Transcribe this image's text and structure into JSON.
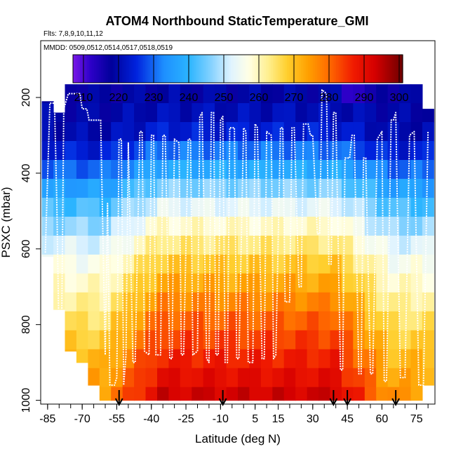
{
  "chart_data": {
    "type": "heatmap",
    "title": "ATOM4 Northbound StaticTemperature_GMI",
    "subtitle_flights": "Flts: 7,8,9,10,11,12",
    "subtitle_dates": "MMDD: 0509,0512,0514,0517,0518,0519",
    "xlabel": "Latitude (deg N)",
    "ylabel": "PSXC (mbar)",
    "xlim": [
      -88,
      83
    ],
    "ylim": [
      1010,
      50
    ],
    "x_ticks": [
      -85,
      -70,
      -55,
      -40,
      -25,
      -10,
      5,
      15,
      30,
      45,
      60,
      75
    ],
    "y_ticks": [
      200,
      400,
      600,
      800,
      1000
    ],
    "colorbar": {
      "min": 207,
      "max": 301,
      "ticks": [
        210,
        220,
        230,
        240,
        250,
        260,
        270,
        280,
        290,
        300
      ],
      "stops": [
        {
          "v": 207,
          "c": "#7a18e8"
        },
        {
          "v": 212,
          "c": "#2d00c8"
        },
        {
          "v": 218,
          "c": "#00009a"
        },
        {
          "v": 225,
          "c": "#0022dd"
        },
        {
          "v": 233,
          "c": "#1e90ff"
        },
        {
          "v": 240,
          "c": "#2ab4ff"
        },
        {
          "v": 246,
          "c": "#7fd0ff"
        },
        {
          "v": 252,
          "c": "#dff3ff"
        },
        {
          "v": 257,
          "c": "#ffffe6"
        },
        {
          "v": 263,
          "c": "#ffee8a"
        },
        {
          "v": 268,
          "c": "#ffcf2e"
        },
        {
          "v": 274,
          "c": "#ffa000"
        },
        {
          "v": 280,
          "c": "#ff6a00"
        },
        {
          "v": 287,
          "c": "#f01a00"
        },
        {
          "v": 293,
          "c": "#d60000"
        },
        {
          "v": 301,
          "c": "#6e0000"
        }
      ]
    },
    "pressure_levels": [
      190,
      240,
      290,
      340,
      390,
      440,
      490,
      540,
      590,
      640,
      690,
      740,
      790,
      840,
      890,
      940,
      990
    ],
    "lat_bins": [
      -85,
      -80,
      -75,
      -70,
      -65,
      -60,
      -55,
      -50,
      -45,
      -40,
      -35,
      -30,
      -25,
      -20,
      -15,
      -10,
      -5,
      0,
      5,
      10,
      15,
      20,
      25,
      30,
      35,
      40,
      45,
      50,
      55,
      60,
      65,
      70,
      75,
      80
    ],
    "temperature_profile": {
      "pressure": [
        190,
        240,
        290,
        340,
        390,
        440,
        490,
        540,
        590,
        640,
        690,
        740,
        790,
        840,
        890,
        940,
        990
      ],
      "tropics": [
        219,
        221,
        224,
        231,
        238,
        246,
        253,
        259,
        264,
        269,
        273,
        277,
        281,
        284,
        287,
        290,
        293
      ],
      "high_lat": [
        218,
        219,
        220,
        224,
        230,
        236,
        242,
        247,
        252,
        256,
        259,
        262,
        265,
        268,
        271,
        273,
        275
      ]
    },
    "flight_track": {
      "lat": [
        -86,
        -84,
        -82,
        -81,
        -80,
        -79,
        -78,
        -76,
        -75,
        -74,
        -71,
        -70,
        -68,
        -67,
        -62,
        -60,
        -59,
        -58,
        -56,
        -55,
        -54,
        -53,
        -52,
        -51,
        -50,
        -48,
        -47,
        -45,
        -44,
        -43,
        -41,
        -40,
        -39,
        -38,
        -36,
        -35,
        -34,
        -32,
        -31,
        -30,
        -28,
        -27,
        -26,
        -24,
        -23,
        -22,
        -20,
        -19,
        -18,
        -16,
        -15,
        -14,
        -13,
        -12,
        -11,
        -10,
        -9,
        -8,
        -7,
        -6,
        -4,
        -3,
        -2,
        0,
        1,
        2,
        4,
        5,
        6,
        8,
        9,
        10,
        12,
        13,
        14,
        16,
        17,
        18,
        20,
        21,
        22,
        24,
        25,
        26,
        28,
        29,
        30,
        32,
        33,
        34,
        36,
        37,
        38,
        39,
        40,
        42,
        43,
        44,
        46,
        47,
        48,
        50,
        51,
        52,
        53,
        55,
        56,
        58,
        60,
        61,
        62,
        64,
        65,
        66,
        68,
        70,
        72,
        74,
        76,
        78,
        80
      ],
      "p": [
        610,
        215,
        215,
        480,
        860,
        860,
        230,
        190,
        190,
        190,
        190,
        230,
        230,
        260,
        260,
        880,
        480,
        960,
        960,
        940,
        310,
        310,
        960,
        880,
        320,
        900,
        900,
        290,
        290,
        870,
        880,
        300,
        300,
        880,
        880,
        300,
        300,
        890,
        890,
        310,
        320,
        880,
        880,
        310,
        310,
        880,
        870,
        250,
        240,
        890,
        900,
        240,
        240,
        880,
        880,
        260,
        250,
        900,
        900,
        280,
        280,
        890,
        890,
        280,
        290,
        900,
        900,
        270,
        280,
        890,
        890,
        290,
        300,
        890,
        880,
        280,
        280,
        740,
        740,
        280,
        280,
        700,
        700,
        270,
        270,
        300,
        300,
        560,
        560,
        180,
        190,
        640,
        640,
        240,
        240,
        920,
        920,
        360,
        360,
        300,
        300,
        930,
        930,
        360,
        360,
        930,
        930,
        310,
        290,
        950,
        950,
        260,
        260,
        240,
        940,
        940,
        300,
        290,
        960,
        960,
        290
      ]
    },
    "arrow_latitudes": [
      -54,
      -9,
      39,
      45,
      66
    ]
  }
}
